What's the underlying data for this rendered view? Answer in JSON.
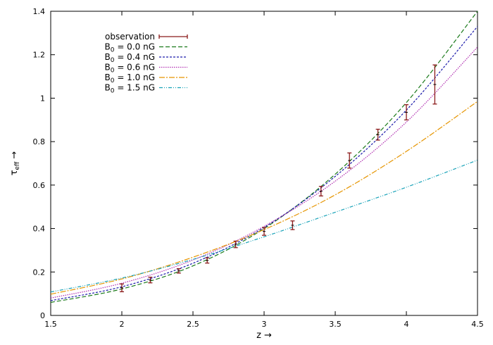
{
  "chart_data": {
    "type": "line",
    "title": "",
    "xlabel": "z →",
    "ylabel": "τ",
    "ylabel_sub": "eff",
    "ylabel_arrow": " →",
    "xlim": [
      1.5,
      4.5
    ],
    "ylim": [
      0,
      1.4
    ],
    "xticks": [
      "1.5",
      "2",
      "2.5",
      "3",
      "3.5",
      "4",
      "4.5"
    ],
    "yticks": [
      "0",
      "0.2",
      "0.4",
      "0.6",
      "0.8",
      "1",
      "1.2",
      "1.4"
    ],
    "grid": false,
    "legend_position": "top-left",
    "observation": {
      "name": "observation",
      "color": "#8b1a1a",
      "x": [
        2.0,
        2.2,
        2.4,
        2.6,
        2.8,
        3.0,
        3.2,
        3.4,
        3.6,
        3.8,
        4.0,
        4.2
      ],
      "y": [
        0.127,
        0.163,
        0.205,
        0.253,
        0.327,
        0.387,
        0.415,
        0.572,
        0.713,
        0.832,
        0.935,
        1.063
      ],
      "err": [
        0.018,
        0.013,
        0.01,
        0.012,
        0.015,
        0.018,
        0.02,
        0.022,
        0.035,
        0.025,
        0.035,
        0.09
      ]
    },
    "series": [
      {
        "name": "B0 = 0.0 nG",
        "label_main": "B",
        "label_sub": "0",
        "label_rest": " = 0.0 nG",
        "color": "#1a7a1a",
        "dash": "6,3",
        "x": [
          1.5,
          2.0,
          2.5,
          3.0,
          3.5,
          4.0,
          4.5
        ],
        "y": [
          0.06,
          0.122,
          0.228,
          0.4,
          0.65,
          0.98,
          1.4
        ]
      },
      {
        "name": "B0 = 0.4 nG",
        "label_main": "B",
        "label_sub": "0",
        "label_rest": " = 0.4 nG",
        "color": "#1a1aaa",
        "dash": "3,2",
        "x": [
          1.5,
          2.0,
          2.5,
          3.0,
          3.5,
          4.0,
          4.5
        ],
        "y": [
          0.068,
          0.132,
          0.24,
          0.405,
          0.64,
          0.945,
          1.33
        ]
      },
      {
        "name": "B0 = 0.6 nG",
        "label_main": "B",
        "label_sub": "0",
        "label_rest": " = 0.6 nG",
        "color": "#b02db0",
        "dash": "1.5,1.5",
        "x": [
          1.5,
          2.0,
          2.5,
          3.0,
          3.5,
          4.0,
          4.5
        ],
        "y": [
          0.08,
          0.148,
          0.255,
          0.41,
          0.618,
          0.89,
          1.235
        ]
      },
      {
        "name": "B0 = 1.0 nG",
        "label_main": "B",
        "label_sub": "0",
        "label_rest": " = 1.0 nG",
        "color": "#e69500",
        "dash": "8,2,2,2",
        "x": [
          1.5,
          2.0,
          2.5,
          3.0,
          3.5,
          4.0,
          4.5
        ],
        "y": [
          0.098,
          0.168,
          0.268,
          0.395,
          0.555,
          0.755,
          0.985
        ]
      },
      {
        "name": "B0 = 1.5 nG",
        "label_main": "B",
        "label_sub": "0",
        "label_rest": " = 1.5 nG",
        "color": "#17a2b8",
        "dash": "5,2,1,2,1,2",
        "x": [
          1.5,
          2.0,
          2.5,
          3.0,
          3.5,
          4.0,
          4.5
        ],
        "y": [
          0.108,
          0.172,
          0.258,
          0.362,
          0.475,
          0.59,
          0.715
        ]
      }
    ]
  }
}
